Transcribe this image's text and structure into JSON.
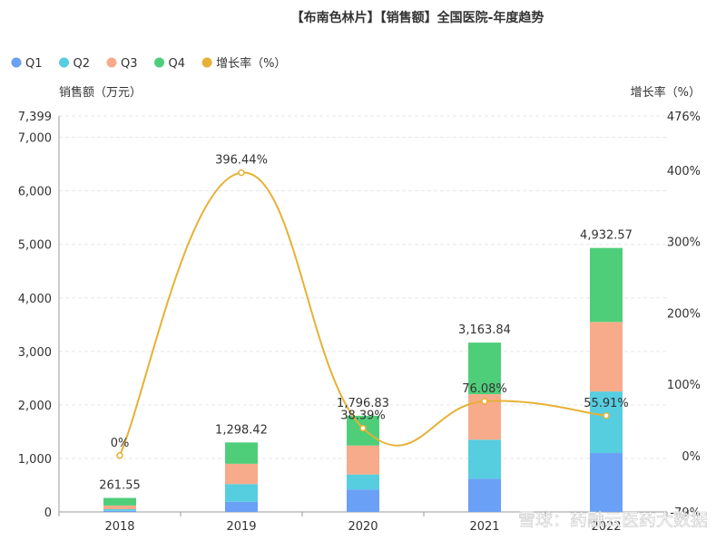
{
  "chart_data": {
    "type": "bar",
    "title": "【布南色林片】【销售额】全国医院-年度趋势",
    "legend_position": "top-left",
    "categories": [
      "2018",
      "2019",
      "2020",
      "2021",
      "2022"
    ],
    "series": [
      {
        "name": "Q1",
        "color": "#6aa0f5",
        "values": [
          20,
          190,
          420,
          620,
          1100
        ]
      },
      {
        "name": "Q2",
        "color": "#57cde0",
        "values": [
          30,
          330,
          280,
          730,
          1150
        ]
      },
      {
        "name": "Q3",
        "color": "#f7ab8a",
        "values": [
          70,
          380,
          540,
          850,
          1300
        ]
      },
      {
        "name": "Q4",
        "color": "#4fce7a",
        "values": [
          141.55,
          398.42,
          556.83,
          963.84,
          1382.57
        ]
      }
    ],
    "totals": [
      "261.55",
      "1,298.42",
      "1,796.83",
      "3,163.84",
      "4,932.57"
    ],
    "growth": {
      "name": "增长率（%）",
      "color": "#e6b135",
      "values": [
        0,
        396.44,
        38.39,
        76.08,
        55.91
      ],
      "labels": [
        "0%",
        "396.44%",
        "38.39%",
        "76.08%",
        "55.91%"
      ]
    },
    "ylabel": "销售额（万元）",
    "y2label": "增长率（%）",
    "ylim": [
      0,
      7399
    ],
    "yticks": [
      "0",
      "1,000",
      "2,000",
      "3,000",
      "4,000",
      "5,000",
      "6,000",
      "7,000",
      "7,399"
    ],
    "y2lim": [
      -79,
      476
    ],
    "y2ticks": [
      "-79%",
      "0%",
      "100%",
      "200%",
      "300%",
      "400%",
      "476%"
    ],
    "grid": true
  },
  "watermark": "雪球：药融云医药大数据",
  "colors": {
    "text": "#333333",
    "axis": "#999999",
    "grid": "#e3e6ea"
  }
}
